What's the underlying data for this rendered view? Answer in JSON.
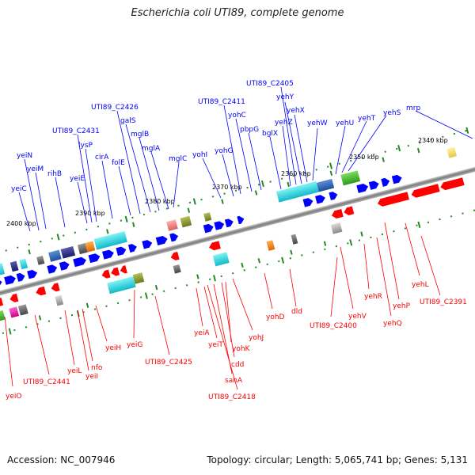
{
  "title": "Escherichia coli UTI89, complete genome",
  "footer": {
    "accession": "Accession: NC_007946",
    "summary": "Topology: circular; Length: 5,065,741 bp; Genes: 5,131"
  },
  "colors": {
    "forward": "#0000ff",
    "reverse": "#ff0000",
    "backbone": "#8c8c8c",
    "tick": "#228b22"
  },
  "ticks": [
    "2340 kbp",
    "2350 kbp",
    "2360 kbp",
    "2370 kbp",
    "2380 kbp",
    "2390 kbp",
    "2400 kbp"
  ],
  "forward_genes": [
    "mrp",
    "yehS",
    "yehT",
    "yehU",
    "yehW",
    "yehX",
    "yehY",
    "UTI89_C2405",
    "yehZ",
    "bglX",
    "pbpG",
    "yohC",
    "UTI89_C2411",
    "yohG",
    "yohI",
    "mglC",
    "mglA",
    "mglB",
    "galS",
    "UTI89_C2426",
    "folE",
    "cirA",
    "lysP",
    "UTI89_C2431",
    "yeiE",
    "rihB",
    "yeiM",
    "yeiN",
    "yeiC"
  ],
  "reverse_genes": [
    "yehL",
    "UTI89_C2391",
    "yehP",
    "yehQ",
    "yehR",
    "yehV",
    "UTI89_C2400",
    "dld",
    "yohD",
    "yohJ",
    "yohK",
    "cdd",
    "sanA",
    "UTI89_C2418",
    "yeiT",
    "yeiA",
    "UTI89_C2425",
    "yeiG",
    "yeiH",
    "nfo",
    "yeiI",
    "yeiL",
    "UTI89_C2441",
    "yeiO"
  ]
}
